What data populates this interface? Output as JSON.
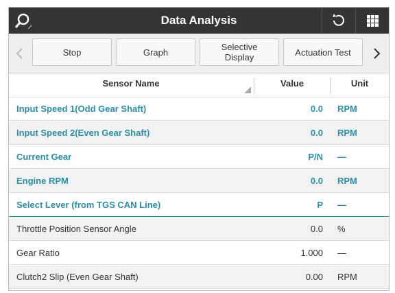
{
  "header": {
    "title": "Data Analysis"
  },
  "toolbar": {
    "buttons": [
      "Stop",
      "Graph",
      "Selective Display",
      "Actuation Test"
    ]
  },
  "table": {
    "columns": [
      "Sensor Name",
      "Value",
      "Unit"
    ],
    "rows": [
      [
        "Input Speed 1(Odd Gear Shaft)",
        "0.0",
        "RPM"
      ],
      [
        "Input Speed 2(Even Gear Shaft)",
        "0.0",
        "RPM"
      ],
      [
        "Current Gear",
        "P/N",
        "—"
      ],
      [
        "Engine RPM",
        "0.0",
        "RPM"
      ],
      [
        "Select Lever (from TGS CAN Line)",
        "P",
        "—"
      ],
      [
        "Throttle Position Sensor Angle",
        "0.0",
        "%"
      ],
      [
        "Gear Ratio",
        "1.000",
        "—"
      ],
      [
        "Clutch2 Slip (Even Gear Shaft)",
        "0.00",
        "RPM"
      ]
    ]
  }
}
